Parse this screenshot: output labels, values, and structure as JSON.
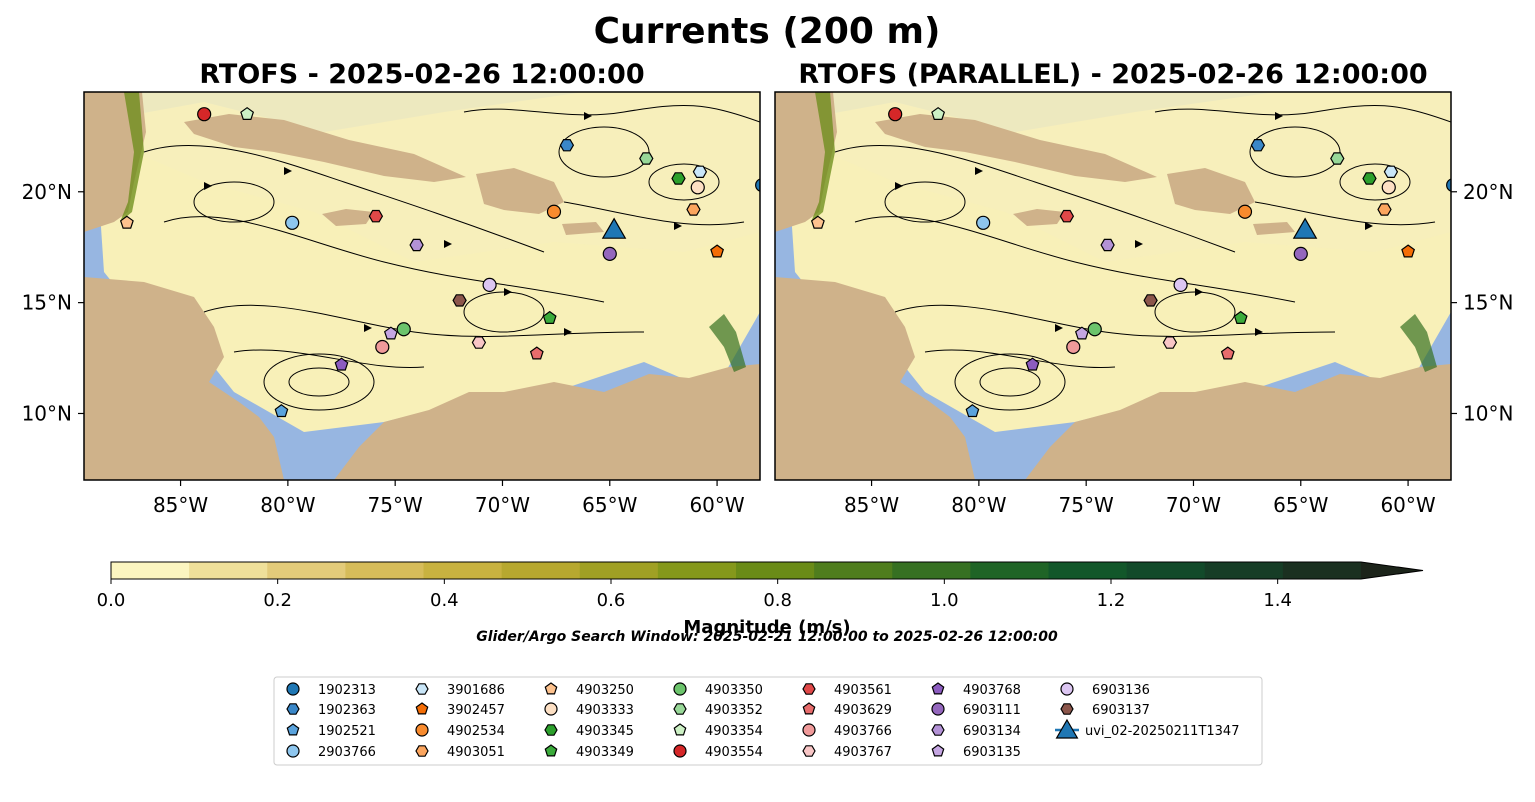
{
  "figure": {
    "title": "Currents (200 m)",
    "window_text": "Glider/Argo Search Window: 2025-02-21 12:00:00 to 2025-02-26 12:00:00"
  },
  "extent": {
    "lon_min": -89.5,
    "lon_max": -58.0,
    "lat_min": 7.0,
    "lat_max": 24.5
  },
  "panels": [
    {
      "title": "RTOFS - 2025-02-26 12:00:00",
      "ytick_side": "left"
    },
    {
      "title": "RTOFS (PARALLEL) - 2025-02-26 12:00:00",
      "ytick_side": "right"
    }
  ],
  "x_ticks": [
    {
      "lon": -85,
      "label": "85°W"
    },
    {
      "lon": -80,
      "label": "80°W"
    },
    {
      "lon": -75,
      "label": "75°W"
    },
    {
      "lon": -70,
      "label": "70°W"
    },
    {
      "lon": -65,
      "label": "65°W"
    },
    {
      "lon": -60,
      "label": "60°W"
    }
  ],
  "y_ticks": [
    {
      "lat": 20,
      "label": "20°N"
    },
    {
      "lat": 15,
      "label": "15°N"
    },
    {
      "lat": 10,
      "label": "10°N"
    }
  ],
  "colorbar": {
    "label": "Magnitude (m/s)",
    "min": 0.0,
    "max": 1.5,
    "extend": "max",
    "ticks": [
      {
        "value": 0.0,
        "label": "0.0"
      },
      {
        "value": 0.2,
        "label": "0.2"
      },
      {
        "value": 0.4,
        "label": "0.4"
      },
      {
        "value": 0.6,
        "label": "0.6"
      },
      {
        "value": 0.8,
        "label": "0.8"
      },
      {
        "value": 1.0,
        "label": "1.0"
      },
      {
        "value": 1.2,
        "label": "1.2"
      },
      {
        "value": 1.4,
        "label": "1.4"
      }
    ],
    "colors": [
      "#fbf5c0",
      "#efe09a",
      "#e3cb7a",
      "#d6bc5a",
      "#c8b240",
      "#b7a82f",
      "#a0a024",
      "#85981b",
      "#6a8b17",
      "#4f7d1d",
      "#367022",
      "#1f6426",
      "#12572a",
      "#124a2a",
      "#163d26",
      "#1a3020",
      "#1c241a"
    ]
  },
  "colors": {
    "ocean": "#97b6e1",
    "land": "#cfb28a",
    "current_low": "#f8f0b8",
    "current_high": "#3a7a1a"
  },
  "markers": [
    {
      "id": "1902313",
      "shape": "circle",
      "color": "#1f77b4",
      "lon": -57.9,
      "lat": 20.3
    },
    {
      "id": "1902363",
      "shape": "hexagon",
      "color": "#3a87c8",
      "lon": -67.0,
      "lat": 22.1
    },
    {
      "id": "1902521",
      "shape": "pentagon",
      "color": "#5aa3dd",
      "lon": -80.3,
      "lat": 10.1
    },
    {
      "id": "2903766",
      "shape": "circle",
      "color": "#8ec6ee",
      "lon": -79.8,
      "lat": 18.6
    },
    {
      "id": "3901686",
      "shape": "hexagon",
      "color": "#c9e6f8",
      "lon": -60.8,
      "lat": 20.9
    },
    {
      "id": "3902457",
      "shape": "pentagon",
      "color": "#f46d06",
      "lon": -60.0,
      "lat": 17.3
    },
    {
      "id": "4902534",
      "shape": "circle",
      "color": "#f88b2e",
      "lon": -67.6,
      "lat": 19.1
    },
    {
      "id": "4903051",
      "shape": "hexagon",
      "color": "#fba55e",
      "lon": -61.1,
      "lat": 19.2
    },
    {
      "id": "4903250",
      "shape": "pentagon",
      "color": "#fdc28e",
      "lon": -87.5,
      "lat": 18.6
    },
    {
      "id": "4903333",
      "shape": "circle",
      "color": "#fde0c4",
      "lon": -60.9,
      "lat": 20.2
    },
    {
      "id": "4903345",
      "shape": "hexagon",
      "color": "#2ca02c",
      "lon": -61.8,
      "lat": 20.6
    },
    {
      "id": "4903349",
      "shape": "pentagon",
      "color": "#3bab3b",
      "lon": -67.8,
      "lat": 14.3
    },
    {
      "id": "4903350",
      "shape": "circle",
      "color": "#6cc46c",
      "lon": -74.6,
      "lat": 13.8
    },
    {
      "id": "4903352",
      "shape": "hexagon",
      "color": "#98d898",
      "lon": -63.3,
      "lat": 21.5
    },
    {
      "id": "4903354",
      "shape": "pentagon",
      "color": "#ccf0c4",
      "lon": -81.9,
      "lat": 23.5
    },
    {
      "id": "4903554",
      "shape": "circle",
      "color": "#d62728",
      "lon": -83.9,
      "lat": 23.5
    },
    {
      "id": "4903561",
      "shape": "hexagon",
      "color": "#e04848",
      "lon": -75.9,
      "lat": 18.9
    },
    {
      "id": "4903629",
      "shape": "pentagon",
      "color": "#e86c6c",
      "lon": -68.4,
      "lat": 12.7
    },
    {
      "id": "4903766",
      "shape": "circle",
      "color": "#f09a9a",
      "lon": -75.6,
      "lat": 13.0
    },
    {
      "id": "4903767",
      "shape": "hexagon",
      "color": "#f8c6c6",
      "lon": -71.1,
      "lat": 13.2
    },
    {
      "id": "4903768",
      "shape": "pentagon",
      "color": "#8c5cc0",
      "lon": -77.5,
      "lat": 12.2
    },
    {
      "id": "6903111",
      "shape": "circle",
      "color": "#9467bd",
      "lon": -65.0,
      "lat": 17.2
    },
    {
      "id": "6903134",
      "shape": "hexagon",
      "color": "#b392d6",
      "lon": -74.0,
      "lat": 17.6
    },
    {
      "id": "6903135",
      "shape": "pentagon",
      "color": "#c5a6e2",
      "lon": -75.2,
      "lat": 13.6
    },
    {
      "id": "6903136",
      "shape": "circle",
      "color": "#dcc6f2",
      "lon": -70.6,
      "lat": 15.8
    },
    {
      "id": "6903137",
      "shape": "hexagon",
      "color": "#8c564b",
      "lon": -72.0,
      "lat": 15.1
    },
    {
      "id": "uvi_02-20250211T1347",
      "shape": "triangle",
      "color": "#1f77b4",
      "lon": -64.8,
      "lat": 18.2
    }
  ]
}
